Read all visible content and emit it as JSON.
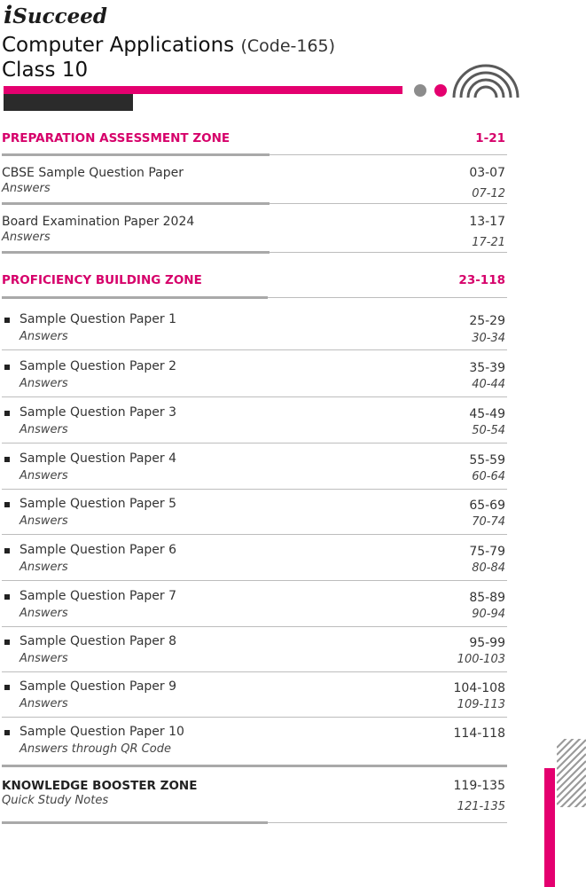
{
  "header": {
    "brand_i": "i",
    "brand_rest": "Succeed",
    "title": "Computer Applications",
    "code": "(Code-165)",
    "subtitle": "Class 10",
    "accent_color": "#e4006f",
    "dark_color": "#2b2b2b"
  },
  "zones": {
    "preparation": {
      "title": "PREPARATION ASSESSMENT ZONE",
      "pages": "1-21",
      "items": [
        {
          "title": "CBSE Sample Question Paper",
          "pages": "03-07",
          "sub": "Answers",
          "sub_pages": "07-12"
        },
        {
          "title": "Board Examination Paper 2024",
          "pages": "13-17",
          "sub": "Answers",
          "sub_pages": "17-21"
        }
      ]
    },
    "proficiency": {
      "title": "PROFICIENCY BUILDING ZONE",
      "pages": "23-118",
      "items": [
        {
          "title": "Sample Question Paper 1",
          "pages": "25-29",
          "sub": "Answers",
          "sub_pages": "30-34"
        },
        {
          "title": "Sample Question Paper 2",
          "pages": "35-39",
          "sub": "Answers",
          "sub_pages": "40-44"
        },
        {
          "title": "Sample Question Paper 3",
          "pages": "45-49",
          "sub": "Answers",
          "sub_pages": "50-54"
        },
        {
          "title": "Sample Question Paper 4",
          "pages": "55-59",
          "sub": "Answers",
          "sub_pages": "60-64"
        },
        {
          "title": "Sample Question Paper 5",
          "pages": "65-69",
          "sub": "Answers",
          "sub_pages": "70-74"
        },
        {
          "title": "Sample Question Paper 6",
          "pages": "75-79",
          "sub": "Answers",
          "sub_pages": "80-84"
        },
        {
          "title": "Sample Question Paper 7",
          "pages": "85-89",
          "sub": "Answers",
          "sub_pages": "90-94"
        },
        {
          "title": "Sample Question Paper 8",
          "pages": "95-99",
          "sub": "Answers",
          "sub_pages": "100-103"
        },
        {
          "title": "Sample Question Paper 9",
          "pages": "104-108",
          "sub": "Answers",
          "sub_pages": "109-113"
        },
        {
          "title": "Sample Question Paper 10",
          "pages": "114-118",
          "sub": "Answers through QR Code",
          "sub_pages": ""
        }
      ]
    },
    "knowledge": {
      "title": "KNOWLEDGE BOOSTER ZONE",
      "pages": "119-135",
      "sub": "Quick Study Notes",
      "sub_pages": "121-135"
    }
  }
}
